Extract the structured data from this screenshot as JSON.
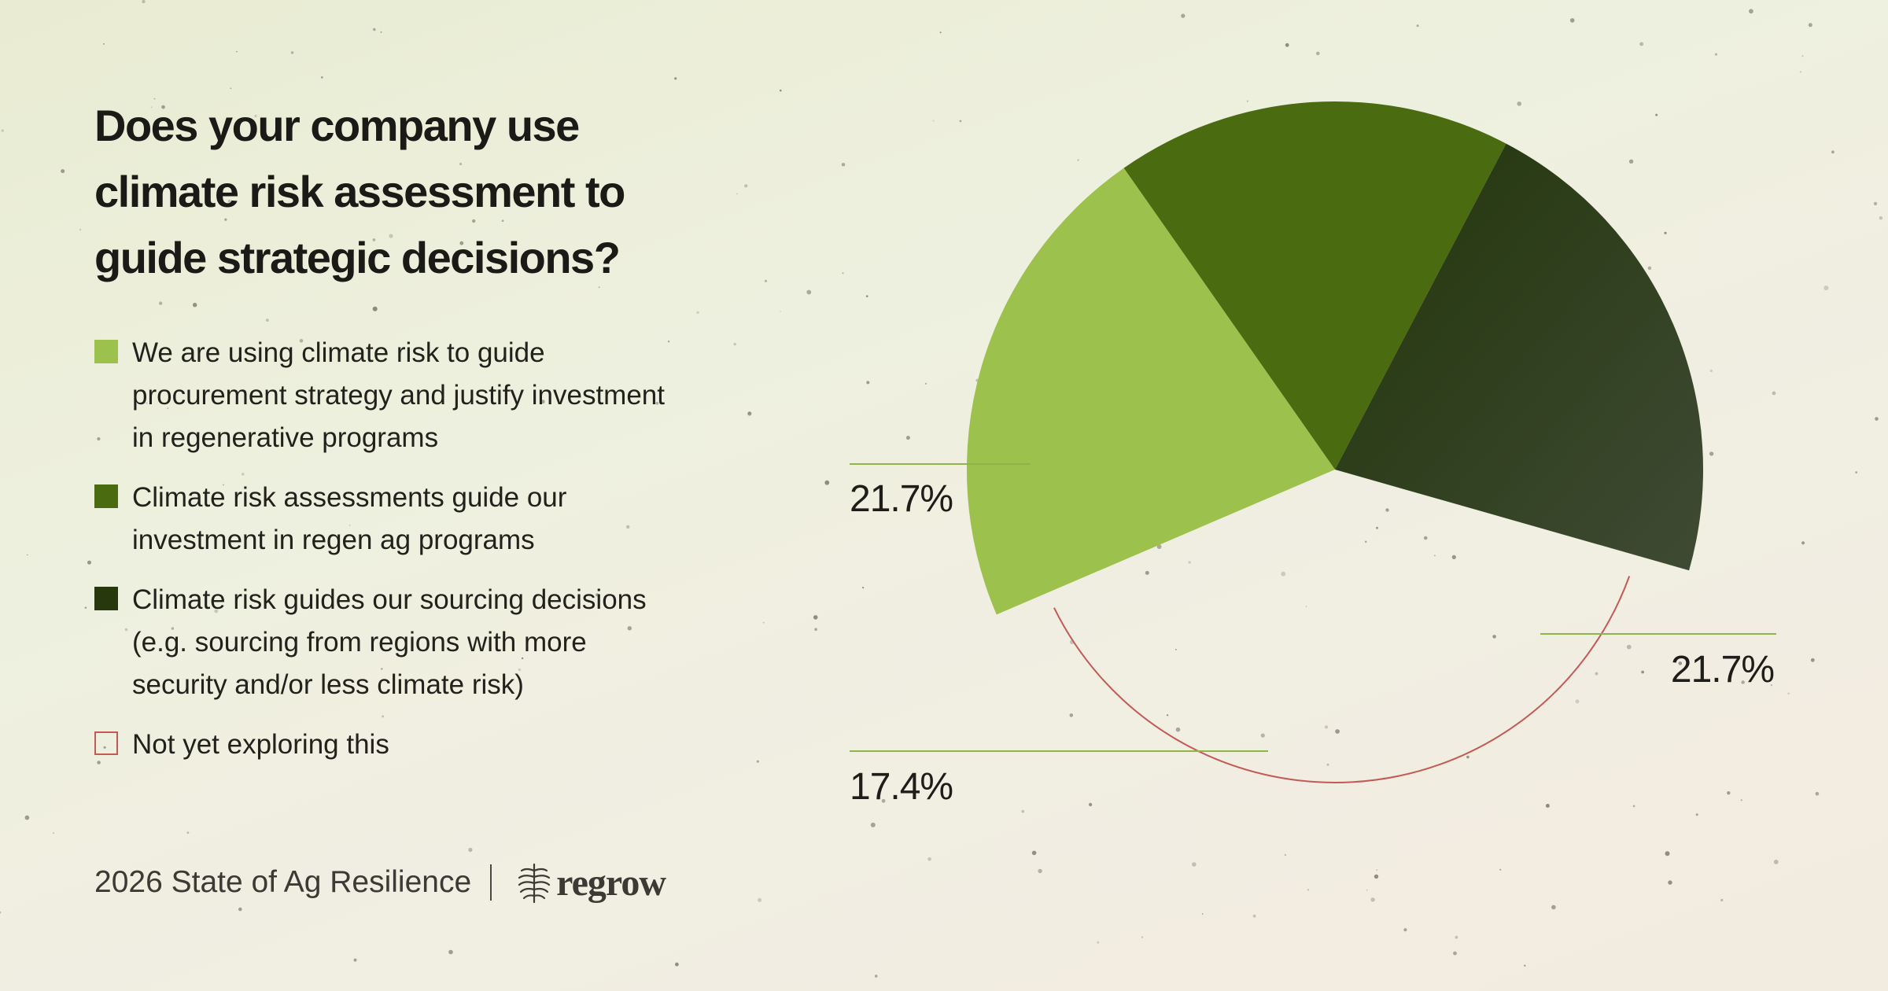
{
  "title": "Does your company use climate risk assessment to guide strategic decisions?",
  "legend": [
    {
      "label": "We are using climate risk to guide procurement strategy and justify investment in regenerative programs",
      "color": "#9dc14d",
      "style": "filled"
    },
    {
      "label": "Climate risk assessments guide our investment in regen ag programs",
      "color": "#4a6b10",
      "style": "filled"
    },
    {
      "label": "Climate risk guides our sourcing decisions (e.g. sourcing from regions with more security and/or less climate risk)",
      "color": "#26380c",
      "style": "filled"
    },
    {
      "label": "Not yet exploring this",
      "color": "#c25a55",
      "style": "outline"
    }
  ],
  "footer": {
    "report_name": "2026 State of Ag Resilience",
    "brand_name": "regrow",
    "brand_icon": "wheat-icon"
  },
  "chart_data": {
    "type": "pie",
    "categories": [
      "We are using climate risk to guide procurement strategy and justify investment in regenerative programs",
      "Climate risk assessments guide our investment in regen ag programs",
      "Climate risk guides our sourcing decisions (e.g. sourcing from regions with more security and/or less climate risk)",
      "Not yet exploring this"
    ],
    "values": [
      21.7,
      17.4,
      21.7,
      39.1
    ],
    "value_labels": [
      "21.7%",
      "17.4%",
      "21.7%",
      ""
    ],
    "colors": [
      "#9dc14d",
      "#4a6b10",
      "#26380c",
      "#c25a55"
    ],
    "slice_styles": [
      "filled",
      "filled",
      "filled",
      "outline"
    ],
    "legend_position": "left"
  }
}
